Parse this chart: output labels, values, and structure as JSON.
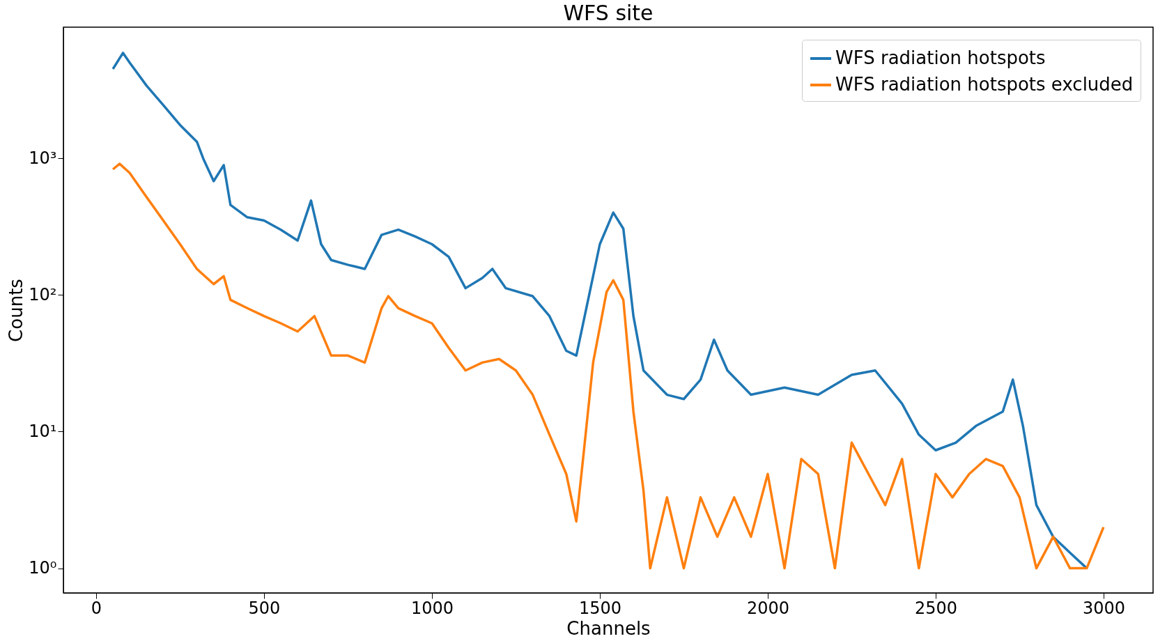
{
  "chart_data": {
    "type": "line",
    "title": "WFS site",
    "xlabel": "Channels",
    "ylabel": "Counts",
    "log": "y",
    "grid": false,
    "legend": "top right",
    "marker": "none",
    "line_style": "solid",
    "xlim": [
      -97.5,
      3147.5
    ],
    "xticks": [
      0,
      500,
      1000,
      1500,
      2000,
      2500,
      3000
    ],
    "ylim": [
      0.66,
      9100
    ],
    "yticks": [
      {
        "value": 1,
        "label": "10⁰"
      },
      {
        "value": 10,
        "label": "10¹"
      },
      {
        "value": 100,
        "label": "10²"
      },
      {
        "value": 1000,
        "label": "10³"
      }
    ],
    "x": [
      50,
      80,
      100,
      150,
      200,
      250,
      300,
      320,
      350,
      380,
      400,
      450,
      500,
      550,
      600,
      640,
      670,
      700,
      750,
      800,
      850,
      900,
      950,
      1000,
      1050,
      1100,
      1150,
      1180,
      1220,
      1300,
      1350,
      1400,
      1430,
      1470,
      1500,
      1540,
      1570,
      1600,
      1630,
      1700,
      1750,
      1800,
      1840,
      1880,
      1950,
      2050,
      2150,
      2250,
      2320,
      2400,
      2450,
      2500,
      2560,
      2620,
      2700,
      2730,
      2760,
      2800,
      2850,
      2900,
      2950
    ],
    "series": [
      {
        "name": "WFS radiation hotspots",
        "color": "#1f77b4",
        "values": [
          4500,
          5900,
          5000,
          3400,
          2450,
          1750,
          1320,
          980,
          680,
          890,
          455,
          370,
          350,
          300,
          250,
          490,
          235,
          180,
          166,
          155,
          275,
          300,
          268,
          235,
          190,
          112,
          133,
          155,
          112,
          98,
          70,
          39,
          36,
          105,
          235,
          400,
          305,
          70,
          28,
          18.6,
          17.3,
          24,
          47,
          28,
          18.6,
          21,
          18.6,
          26,
          28,
          16,
          9.5,
          7.3,
          8.3,
          11,
          14,
          24,
          11,
          2.9,
          1.7,
          1.3,
          1
        ]
      },
      {
        "name": "WFS radiation hotspots excluded",
        "color": "#ff7f0e",
        "x": [
          50,
          70,
          100,
          150,
          200,
          250,
          300,
          350,
          380,
          400,
          450,
          500,
          550,
          600,
          650,
          700,
          750,
          800,
          850,
          870,
          900,
          950,
          1000,
          1050,
          1100,
          1150,
          1200,
          1250,
          1300,
          1350,
          1400,
          1430,
          1450,
          1480,
          1520,
          1540,
          1570,
          1600,
          1630,
          1650,
          1700,
          1750,
          1800,
          1850,
          1900,
          1950,
          2000,
          2050,
          2100,
          2150,
          2200,
          2250,
          2300,
          2350,
          2400,
          2450,
          2500,
          2550,
          2600,
          2650,
          2700,
          2750,
          2800,
          2850,
          2900,
          2950,
          3000
        ],
        "values": [
          830,
          910,
          780,
          520,
          350,
          235,
          155,
          120,
          137,
          92,
          80,
          70,
          62,
          54,
          70,
          36,
          36,
          32,
          80,
          98,
          80,
          70,
          62,
          41,
          28,
          32,
          34,
          28,
          18.6,
          9.5,
          4.9,
          2.2,
          6.3,
          32,
          105,
          128,
          92,
          14,
          3.7,
          1,
          3.3,
          1,
          3.3,
          1.7,
          3.3,
          1.7,
          4.9,
          1,
          6.3,
          4.9,
          1,
          8.3,
          4.9,
          2.9,
          6.3,
          1,
          4.9,
          3.3,
          4.9,
          6.3,
          5.6,
          3.3,
          1,
          1.7,
          1,
          1,
          2
        ]
      }
    ]
  }
}
